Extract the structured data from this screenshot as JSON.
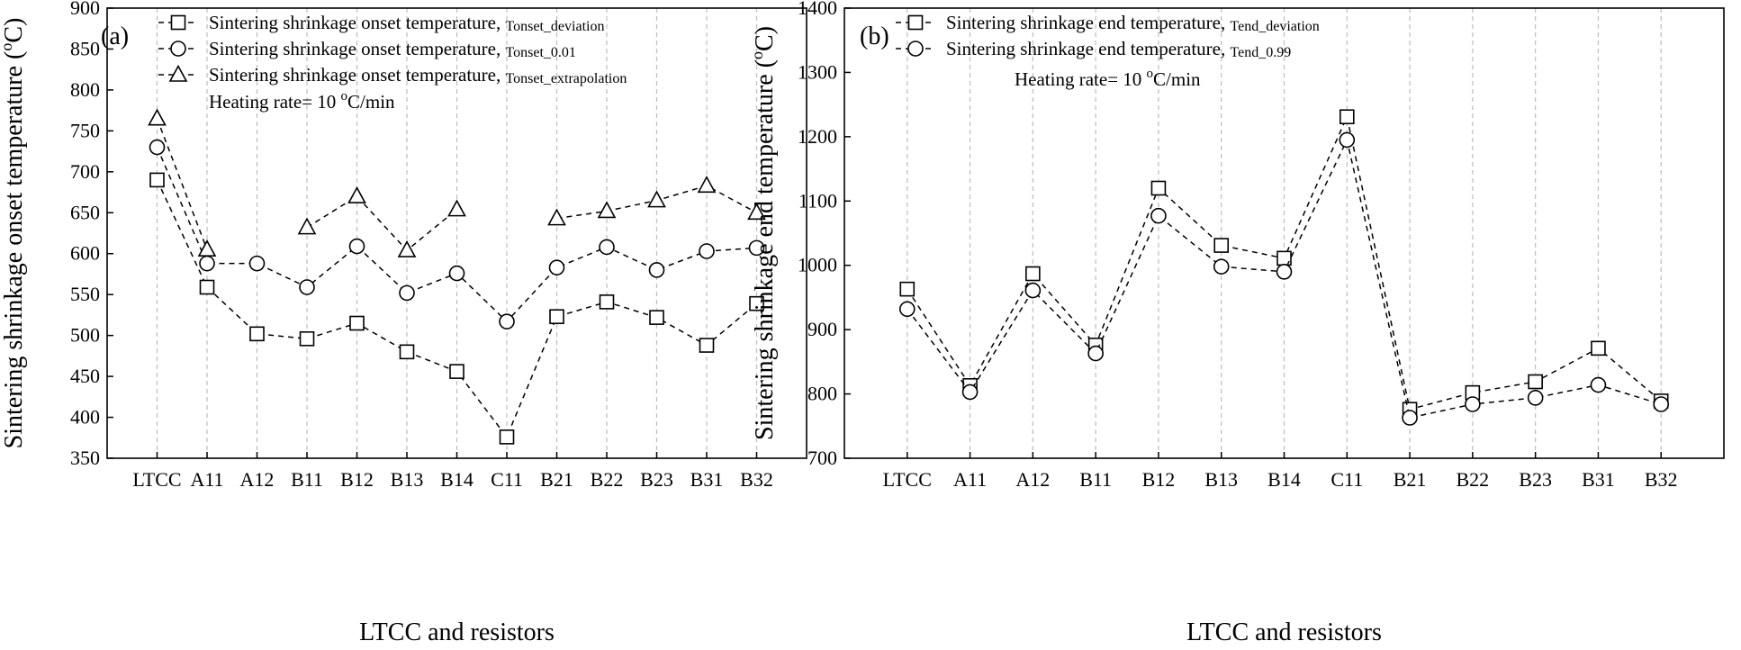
{
  "chart_data": [
    {
      "type": "line",
      "panel_label": "(a)",
      "categories": [
        "LTCC",
        "A11",
        "A12",
        "B11",
        "B12",
        "B13",
        "B14",
        "C11",
        "B21",
        "B22",
        "B23",
        "B31",
        "B32"
      ],
      "ylim": [
        350,
        900
      ],
      "yticks": [
        350,
        400,
        450,
        500,
        550,
        600,
        650,
        700,
        750,
        800,
        850,
        900
      ],
      "xlabel": "LTCC and resistors",
      "ylabel_main": "Sintering shrinkage onset temperature (",
      "ylabel_sup": "o",
      "ylabel_end": "C)",
      "note_main": "Heating rate= 10 ",
      "note_sup": "o",
      "note_end": "C/min",
      "grid": "vertical-dashed",
      "legend_position": "top",
      "series": [
        {
          "name": "Sintering shrinkage onset temperature, ",
          "name_sub": "Tonset_deviation",
          "marker": "square",
          "values": [
            690,
            559,
            502,
            496,
            515,
            480,
            456,
            376,
            523,
            541,
            522,
            488,
            539
          ]
        },
        {
          "name": "Sintering shrinkage onset temperature, ",
          "name_sub": "Tonset_0.01",
          "marker": "circle",
          "values": [
            730,
            588,
            588,
            559,
            609,
            552,
            576,
            517,
            583,
            608,
            580,
            603,
            607
          ]
        },
        {
          "name": "Sintering shrinkage onset temperature, ",
          "name_sub": "Tonset_extrapolation",
          "marker": "triangle",
          "values": [
            765,
            605,
            null,
            632,
            670,
            604,
            654,
            null,
            643,
            652,
            665,
            683,
            650
          ]
        }
      ]
    },
    {
      "type": "line",
      "panel_label": "(b)",
      "categories": [
        "LTCC",
        "A11",
        "A12",
        "B11",
        "B12",
        "B13",
        "B14",
        "C11",
        "B21",
        "B22",
        "B23",
        "B31",
        "B32"
      ],
      "ylim": [
        700,
        1400
      ],
      "yticks": [
        700,
        800,
        900,
        1000,
        1100,
        1200,
        1300,
        1400
      ],
      "xlabel": "LTCC and resistors",
      "ylabel_main": "Sintering shrinkage end temperature (",
      "ylabel_sup": "o",
      "ylabel_end": "C)",
      "note_main": "Heating rate= 10 ",
      "note_sup": "o",
      "note_end": "C/min",
      "grid": "vertical-dashed",
      "legend_position": "top",
      "series": [
        {
          "name": "Sintering shrinkage end temperature, ",
          "name_sub": "Tend_deviation",
          "marker": "square",
          "values": [
            963,
            813,
            987,
            876,
            1120,
            1031,
            1011,
            1231,
            776,
            802,
            819,
            871,
            789
          ]
        },
        {
          "name": "Sintering shrinkage end temperature, ",
          "name_sub": "Tend_0.99",
          "marker": "circle",
          "values": [
            932,
            803,
            961,
            863,
            1077,
            998,
            990,
            1195,
            763,
            784,
            794,
            814,
            784
          ]
        }
      ]
    }
  ]
}
